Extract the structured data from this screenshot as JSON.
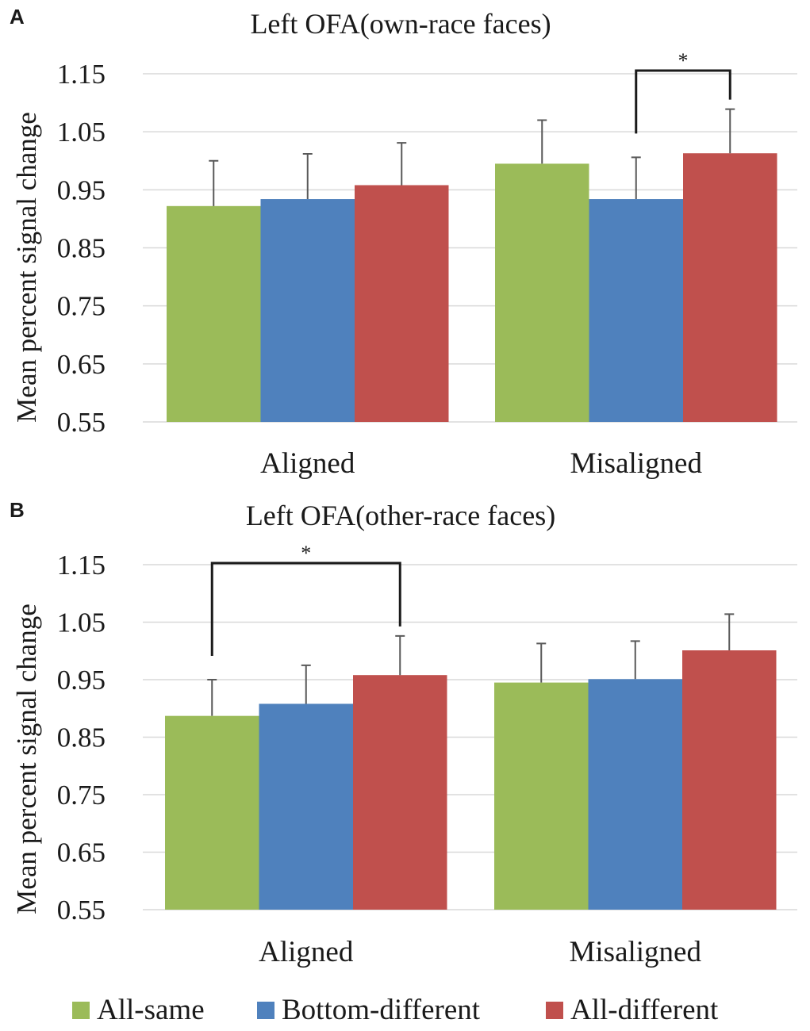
{
  "legend": [
    {
      "name": "All-same",
      "color": "#9BBB59"
    },
    {
      "name": "Bottom-different",
      "color": "#4F81BD"
    },
    {
      "name": "All-different",
      "color": "#C0504D"
    }
  ],
  "chart_data": [
    {
      "panel": "A",
      "type": "bar",
      "title": "Left OFA(own-race faces)",
      "ylabel": "Mean percent signal change",
      "xlabel": "",
      "ylim": [
        0.55,
        1.15
      ],
      "yticks": [
        "1.15",
        "1.05",
        "0.95",
        "0.85",
        "0.75",
        "0.65",
        "0.55"
      ],
      "grid": true,
      "categories": [
        "Aligned",
        "Misaligned"
      ],
      "series": [
        {
          "name": "All-same",
          "values": [
            0.922,
            0.995
          ],
          "errors": [
            0.078,
            0.075
          ]
        },
        {
          "name": "Bottom-different",
          "values": [
            0.934,
            0.934
          ],
          "errors": [
            0.078,
            0.072
          ]
        },
        {
          "name": "All-different",
          "values": [
            0.958,
            1.013
          ],
          "errors": [
            0.073,
            0.076
          ]
        }
      ],
      "significance": [
        {
          "category": "Misaligned",
          "from": "Bottom-different",
          "to": "All-different",
          "label": "*"
        }
      ]
    },
    {
      "panel": "B",
      "type": "bar",
      "title": "Left OFA(other-race faces)",
      "ylabel": "Mean percent signal change",
      "xlabel": "",
      "ylim": [
        0.55,
        1.15
      ],
      "yticks": [
        "1.15",
        "1.05",
        "0.95",
        "0.85",
        "0.75",
        "0.65",
        "0.55"
      ],
      "grid": true,
      "categories": [
        "Aligned",
        "Misaligned"
      ],
      "series": [
        {
          "name": "All-same",
          "values": [
            0.887,
            0.945
          ],
          "errors": [
            0.063,
            0.068
          ]
        },
        {
          "name": "Bottom-different",
          "values": [
            0.908,
            0.951
          ],
          "errors": [
            0.067,
            0.066
          ]
        },
        {
          "name": "All-different",
          "values": [
            0.958,
            1.001
          ],
          "errors": [
            0.068,
            0.063
          ]
        }
      ],
      "significance": [
        {
          "category": "Aligned",
          "from": "All-same",
          "to": "All-different",
          "label": "*"
        }
      ]
    }
  ]
}
